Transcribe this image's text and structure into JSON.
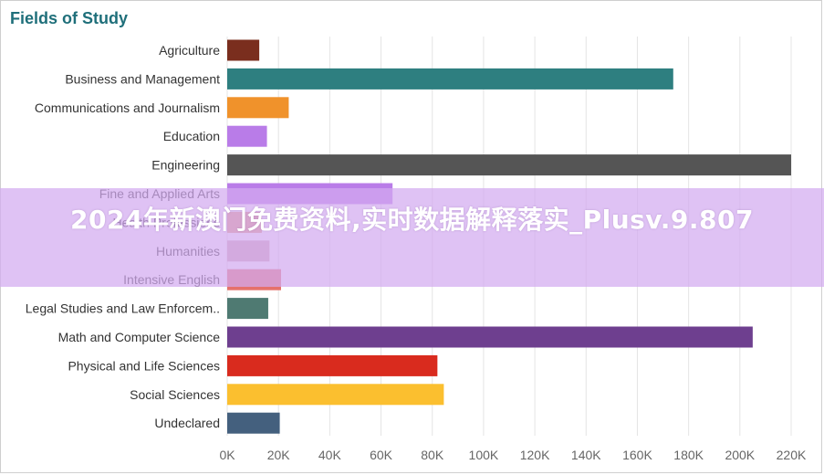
{
  "watermark": {
    "text": "2024年新澳门免费资料,实时数据解释落实_Plusv.9.807"
  },
  "chart_data": {
    "type": "bar",
    "orientation": "horizontal",
    "title": "Fields of Study",
    "xlabel": "",
    "ylabel": "",
    "xlim": [
      0,
      220000
    ],
    "x_ticks": [
      "0K",
      "20K",
      "40K",
      "60K",
      "80K",
      "100K",
      "120K",
      "140K",
      "160K",
      "180K",
      "200K",
      "220K"
    ],
    "grid": true,
    "legend": "none",
    "categories": [
      "Agriculture",
      "Business and Management",
      "Communications and Journalism",
      "Education",
      "Engineering",
      "Fine and Applied Arts",
      "Health Professions",
      "Humanities",
      "Intensive English",
      "Legal Studies and Law Enforcem..",
      "Math and Computer Science",
      "Physical and Life Sciences",
      "Social Sciences",
      "Undeclared"
    ],
    "values": [
      12500,
      174000,
      24000,
      15500,
      220000,
      64500,
      13500,
      16500,
      21000,
      16000,
      205000,
      82000,
      84500,
      20500
    ],
    "colors": [
      "#7a2e1e",
      "#2e7f80",
      "#f0922b",
      "#b97ce8",
      "#555555",
      "#b97ce8",
      "#e59a7a",
      "#d4a9b4",
      "#e5716b",
      "#4f7a72",
      "#6e3f8f",
      "#d92b1e",
      "#fbbf2f",
      "#44607e"
    ]
  }
}
